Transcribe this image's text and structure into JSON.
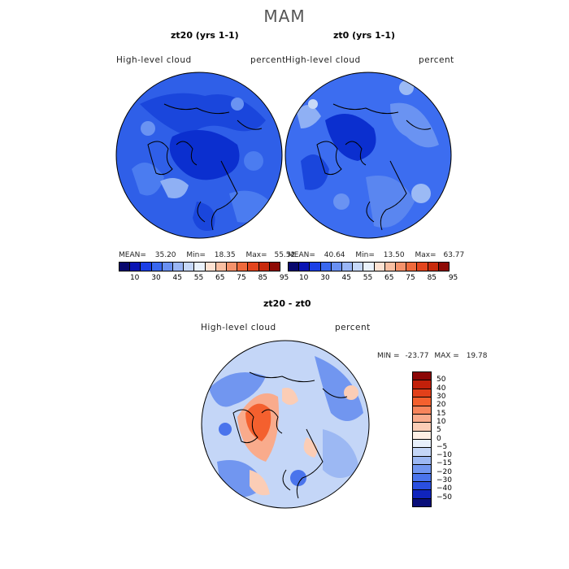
{
  "title": "MAM",
  "panels": [
    {
      "title": "zt20 (yrs 1-1)",
      "variable": "High-level cloud",
      "units": "percent",
      "stats": {
        "mean_label": "MEAN=",
        "mean": "35.20",
        "min_label": "Min=",
        "min": "18.35",
        "max_label": "Max=",
        "max": "55.52"
      }
    },
    {
      "title": "zt0 (yrs 1-1)",
      "variable": "High-level cloud",
      "units": "percent",
      "stats": {
        "mean_label": "MEAN=",
        "mean": "40.64",
        "min_label": "Min=",
        "min": "13.50",
        "max_label": "Max=",
        "max": "63.77"
      }
    }
  ],
  "diff_panel": {
    "title": "zt20 - zt0",
    "variable": "High-level cloud",
    "units": "percent",
    "stats": {
      "min_label": "MIN =",
      "min": "-23.77",
      "max_label": "MAX =",
      "max": "19.78"
    }
  },
  "colorbar_top": {
    "ticks": [
      "10",
      "30",
      "45",
      "55",
      "65",
      "75",
      "85",
      "95"
    ],
    "colors": [
      "#08086e",
      "#0a14b4",
      "#1b3fe6",
      "#3a68f0",
      "#6a90f2",
      "#9ab6f5",
      "#c6d8f8",
      "#eaf2fb",
      "#fde2d2",
      "#f9bfa2",
      "#f5926b",
      "#ef6a3c",
      "#e3451e",
      "#c82a0c",
      "#8e0a05"
    ]
  },
  "colorbar_diff": {
    "labels": [
      "50",
      "40",
      "30",
      "20",
      "15",
      "10",
      "5",
      "0",
      "−5",
      "−10",
      "−15",
      "−20",
      "−30",
      "−40",
      "−50"
    ],
    "colors": [
      "#8c0606",
      "#c2200a",
      "#e2401a",
      "#f4602e",
      "#f7855c",
      "#f9ab8c",
      "#fbcdb6",
      "#fdeee4",
      "#e8f0fb",
      "#c4d6f7",
      "#9cb8f3",
      "#7196f0",
      "#4a74ec",
      "#2a4fe0",
      "#1024bd",
      "#0a0f7a"
    ]
  }
}
